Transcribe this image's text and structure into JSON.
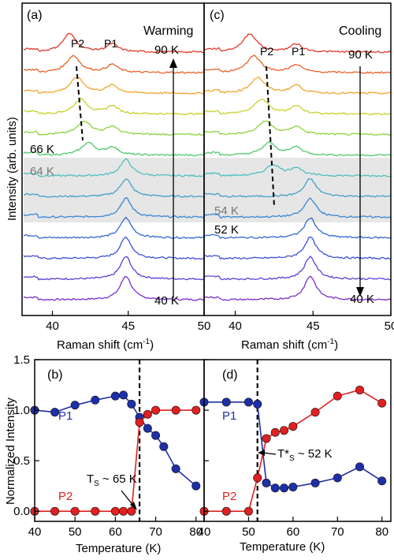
{
  "chart_data": [
    {
      "panel": "(a)",
      "type": "line",
      "title": "Warming",
      "xlabel": "Raman shift (cm⁻¹)",
      "ylabel": "Intensity (arb. units)",
      "xlim": [
        38,
        50
      ],
      "x_ticks": [
        "40",
        "45",
        "50"
      ],
      "peak_labels": [
        "P2",
        "P1"
      ],
      "series": [
        {
          "label": "40 K",
          "values": {
            "P1": 1.0,
            "P2": 0.0
          }
        },
        {
          "values": {}
        },
        {
          "values": {}
        },
        {
          "values": {}
        },
        {
          "values": {}
        },
        {
          "label": "64 K",
          "values": {}
        },
        {
          "label": "66 K",
          "values": {}
        },
        {
          "values": {}
        },
        {
          "values": {}
        },
        {
          "values": {}
        },
        {
          "values": {}
        },
        {
          "label": "90 K",
          "values": {}
        }
      ],
      "annotations": [
        "90 K",
        "66 K",
        "64 K",
        "40 K"
      ],
      "highlight_band": "64 K"
    },
    {
      "panel": "(c)",
      "type": "line",
      "title": "Cooling",
      "xlabel": "Raman shift (cm⁻¹)",
      "xlim": [
        38,
        50
      ],
      "x_ticks": [
        "40",
        "45",
        "50"
      ],
      "peak_labels": [
        "P2",
        "P1"
      ],
      "annotations": [
        "90 K",
        "54 K",
        "52 K",
        "40 K"
      ],
      "highlight_band": "54 K"
    },
    {
      "panel": "(b)",
      "type": "scatter",
      "xlabel": "Temperature (K)",
      "ylabel": "Normalized Intensity",
      "xlim": [
        40,
        82
      ],
      "ylim": [
        -0.1,
        1.5
      ],
      "x_ticks": [
        "40",
        "50",
        "60",
        "70",
        "80"
      ],
      "y_ticks": [
        "0.0",
        "0.5",
        "1.0",
        "1.5"
      ],
      "series": [
        {
          "name": "P1",
          "color": "#1f2fa8",
          "x": [
            40,
            45,
            50,
            55,
            60,
            62,
            64,
            66,
            68,
            70,
            72,
            75,
            80
          ],
          "y": [
            1.0,
            0.98,
            1.05,
            1.1,
            1.14,
            1.15,
            1.06,
            0.93,
            0.82,
            0.75,
            0.64,
            0.42,
            0.25
          ]
        },
        {
          "name": "P2",
          "color": "#e02020",
          "x": [
            40,
            45,
            50,
            55,
            60,
            62,
            64,
            66,
            68,
            70,
            75,
            80
          ],
          "y": [
            0.0,
            0.0,
            0.0,
            0.0,
            0.0,
            0.0,
            0.0,
            0.88,
            0.96,
            1.0,
            1.0,
            1.0
          ]
        }
      ],
      "transition_x": 66,
      "annotation": "Tₛ ~ 65 K"
    },
    {
      "panel": "(d)",
      "type": "scatter",
      "xlabel": "Temperature (K)",
      "xlim": [
        40,
        82
      ],
      "ylim": [
        -0.1,
        1.5
      ],
      "x_ticks": [
        "40",
        "50",
        "60",
        "70",
        "80"
      ],
      "series": [
        {
          "name": "P1",
          "color": "#1f2fa8",
          "x": [
            40,
            45,
            50,
            52,
            54,
            56,
            58,
            60,
            65,
            70,
            75,
            80
          ],
          "y": [
            1.08,
            1.08,
            1.08,
            1.06,
            0.28,
            0.23,
            0.23,
            0.24,
            0.28,
            0.33,
            0.44,
            0.3
          ]
        },
        {
          "name": "P2",
          "color": "#e02020",
          "x": [
            40,
            45,
            50,
            52,
            54,
            56,
            58,
            60,
            65,
            70,
            75,
            80
          ],
          "y": [
            0.0,
            0.0,
            0.0,
            0.33,
            0.72,
            0.78,
            0.8,
            0.84,
            0.98,
            1.14,
            1.2,
            1.07
          ]
        }
      ],
      "transition_x": 52,
      "annotation": "T*ₛ ~ 52 K"
    }
  ],
  "panels": {
    "a": {
      "label": "(a)",
      "title": "Warming",
      "xlabel": "Raman shift (cm",
      "xlabel_sup": "-1",
      "xlabel_end": ")",
      "ylabel": "Intensity (arb. units)",
      "ticks": [
        "40",
        "45",
        "50"
      ],
      "p2": "P2",
      "p1": "P1",
      "t_top": "90 K",
      "t_66": "66 K",
      "t_64": "64 K",
      "t_bot": "40 K"
    },
    "c": {
      "label": "(c)",
      "title": "Cooling",
      "xlabel": "Raman shift (cm",
      "xlabel_sup": "-1",
      "xlabel_end": ")",
      "ticks": [
        "40",
        "45",
        "50"
      ],
      "p2": "P2",
      "p1": "P1",
      "t_top": "90 K",
      "t_54": "54 K",
      "t_52": "52 K",
      "t_bot": "40 K"
    },
    "b": {
      "label": "(b)",
      "xlabel": "Temperature (K)",
      "ylabel": "Normalized Intensity",
      "xticks": [
        "40",
        "50",
        "60",
        "70",
        "80"
      ],
      "yticks": [
        "0.0",
        "0.5",
        "1.0",
        "1.5"
      ],
      "p1": "P1",
      "p2": "P2",
      "ts_main": "T",
      "ts_sub": "S",
      "ts_rest": " ~ 65 K"
    },
    "d": {
      "label": "(d)",
      "xlabel": "Temperature (K)",
      "xticks": [
        "40",
        "50",
        "60",
        "70",
        "80"
      ],
      "p1": "P1",
      "p2": "P2",
      "ts_main": "T*",
      "ts_sub": "S",
      "ts_rest": " ~ 52 K"
    }
  },
  "spectra_colors": [
    "#7a2fcf",
    "#5b3fd6",
    "#3e4fd8",
    "#3469d2",
    "#3a86d6",
    "#44a0c8",
    "#4fbfbf",
    "#4fc96a",
    "#8ed23c",
    "#c8d22a",
    "#f0a52a",
    "#e8632a",
    "#e33a2a"
  ]
}
